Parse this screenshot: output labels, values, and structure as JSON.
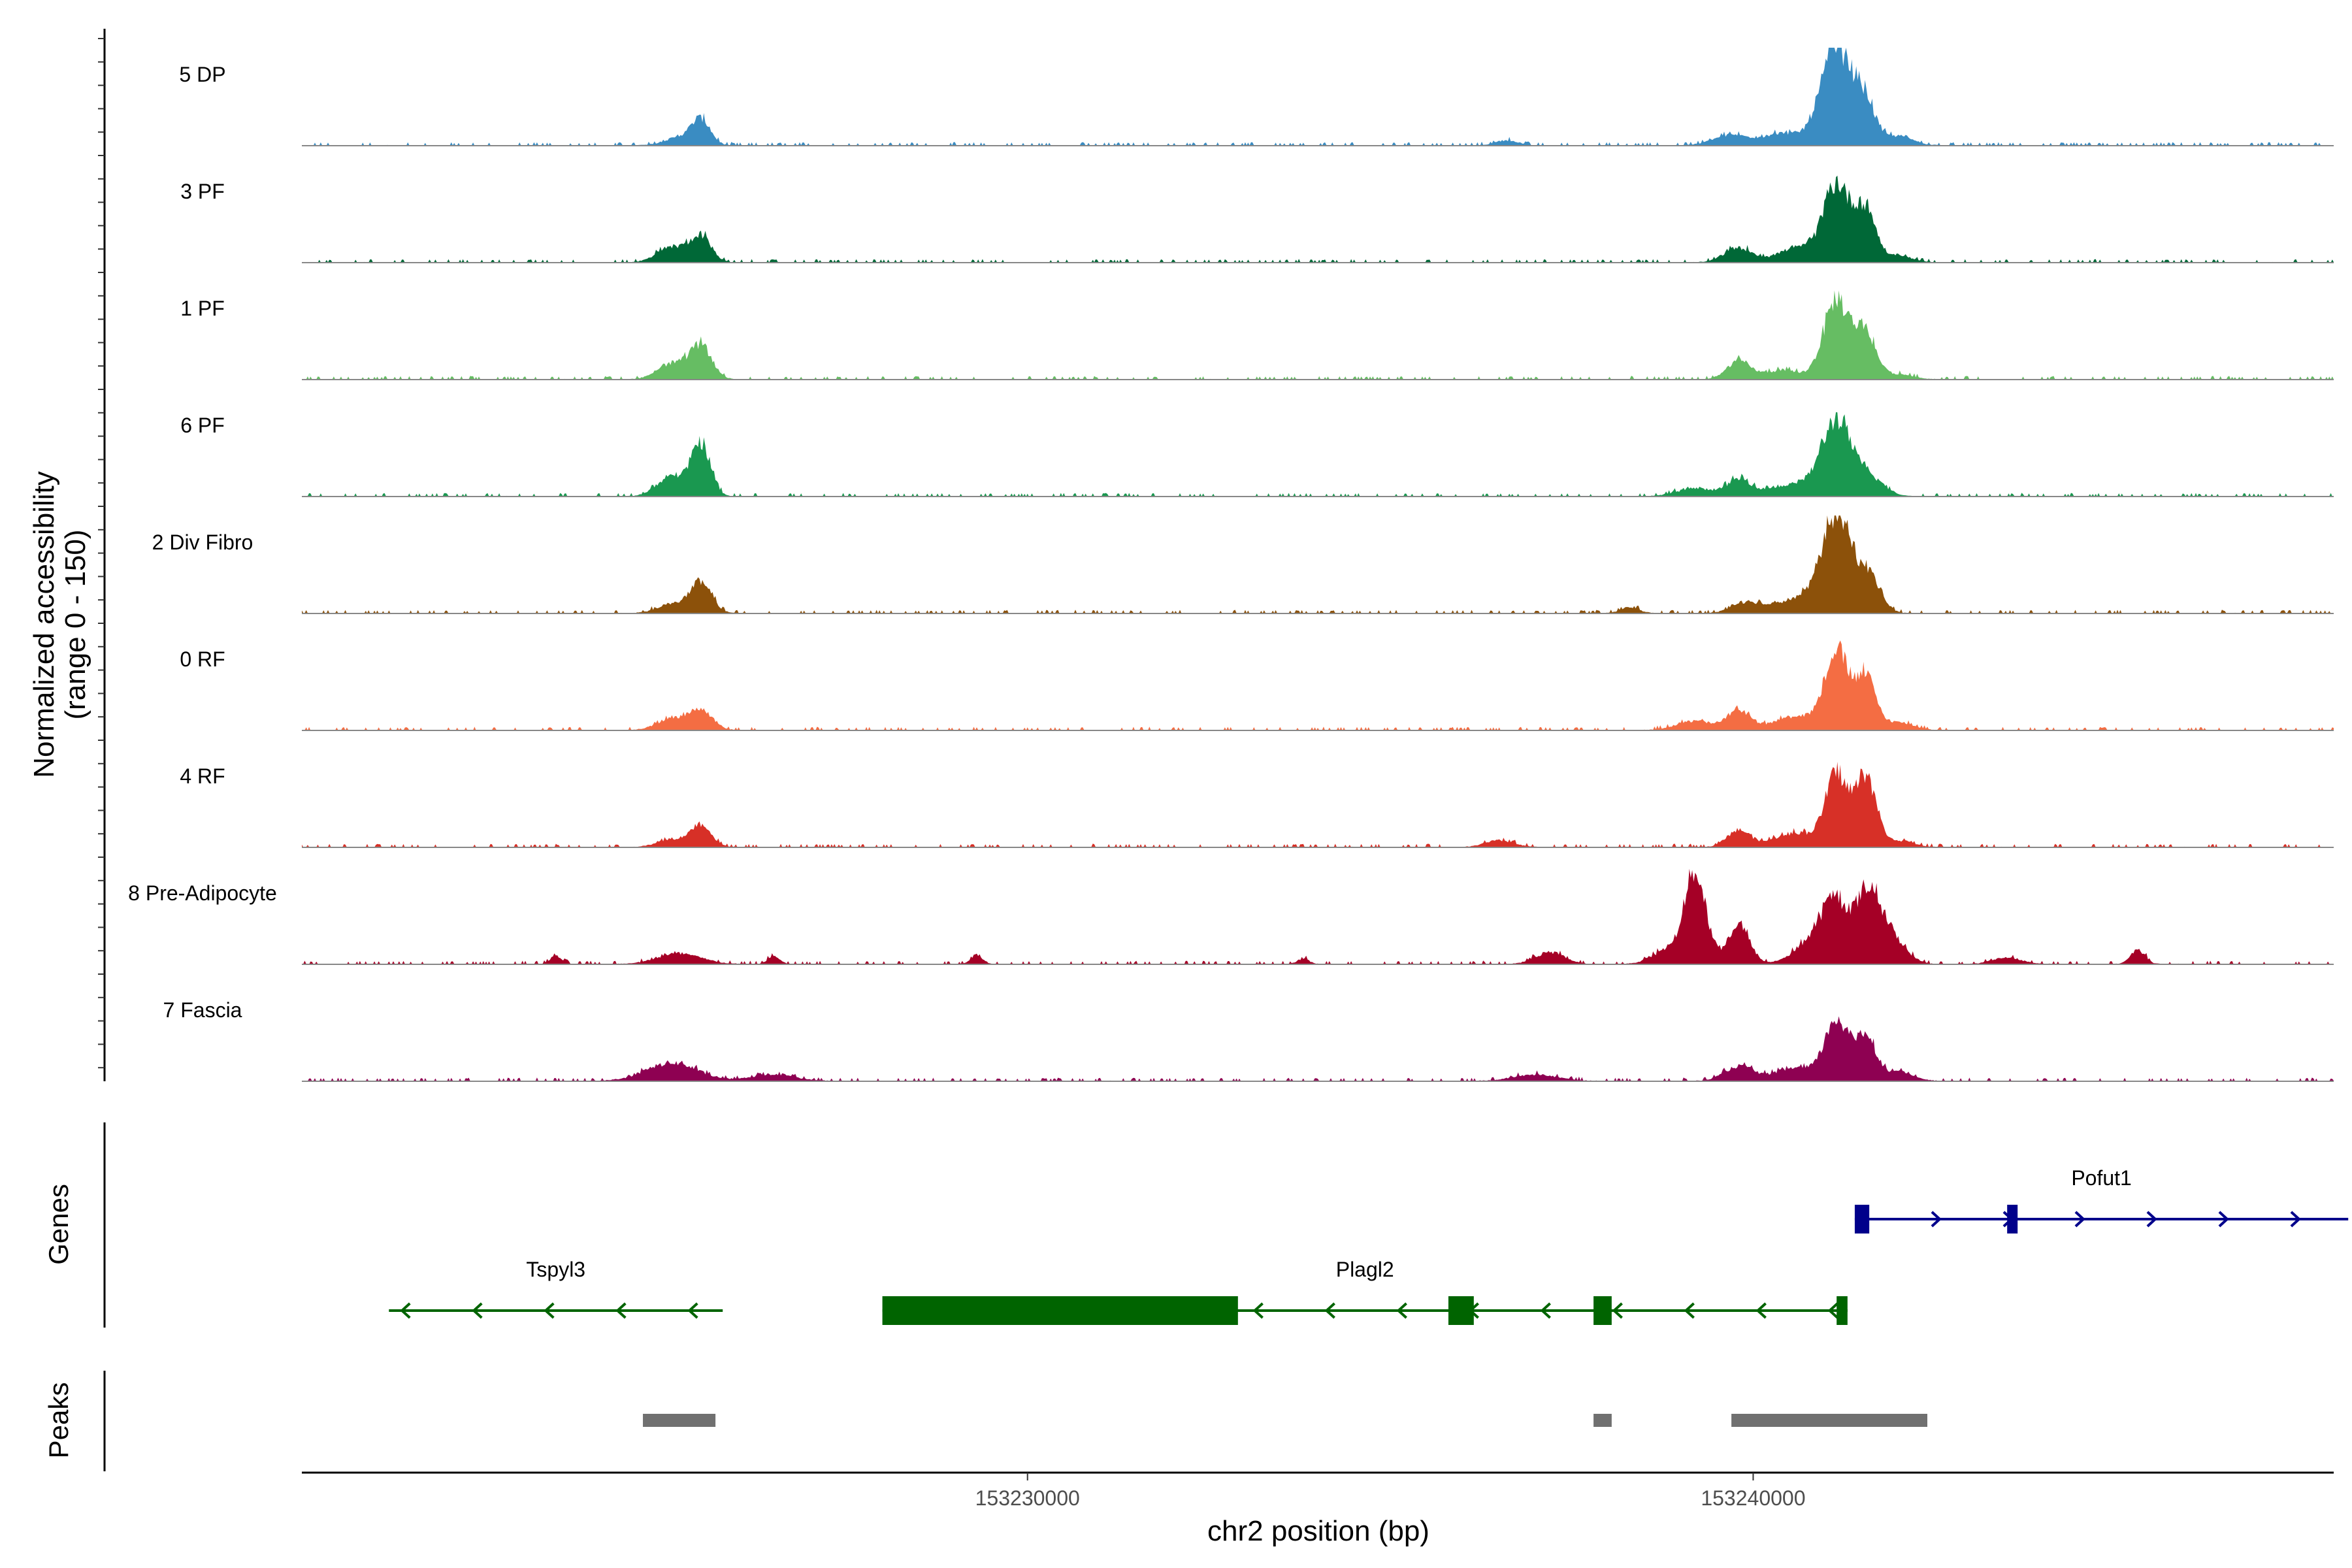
{
  "chart_data": {
    "type": "area",
    "title": "",
    "xlabel": "chr2 position (bp)",
    "ylabel_line1": "Normalized accessibility",
    "ylabel_line2": "(range 0 - 150)",
    "ylim": [
      0,
      150
    ],
    "xlim": [
      153220000,
      153248000
    ],
    "x_ticks": [
      153230000,
      153240000
    ],
    "x_tick_labels": [
      "153230000",
      "153240000"
    ],
    "genes_label": "Genes",
    "peaks_label": "Peaks",
    "series": [
      {
        "name": "5 DP",
        "color": "#3A8CC2",
        "peaks": [
          [
            153225500,
            38,
            130
          ],
          [
            153225200,
            12,
            200
          ],
          [
            153236600,
            8,
            150
          ],
          [
            153239700,
            16,
            250
          ],
          [
            153240400,
            18,
            250
          ],
          [
            153241150,
            150,
            220
          ],
          [
            153241550,
            55,
            140
          ],
          [
            153242000,
            14,
            200
          ]
        ]
      },
      {
        "name": "3 PF",
        "color": "#006837",
        "peaks": [
          [
            153225500,
            40,
            140
          ],
          [
            153225100,
            24,
            200
          ],
          [
            153239800,
            22,
            200
          ],
          [
            153240600,
            22,
            250
          ],
          [
            153241150,
            120,
            180
          ],
          [
            153241550,
            80,
            140
          ],
          [
            153242000,
            10,
            200
          ]
        ]
      },
      {
        "name": "1 PF",
        "color": "#66BD63",
        "peaks": [
          [
            153225500,
            50,
            150
          ],
          [
            153225100,
            24,
            200
          ],
          [
            153239800,
            28,
            160
          ],
          [
            153240400,
            14,
            250
          ],
          [
            153241150,
            120,
            180
          ],
          [
            153241550,
            70,
            140
          ],
          [
            153242000,
            8,
            200
          ]
        ]
      },
      {
        "name": "6 PF",
        "color": "#1A9850",
        "peaks": [
          [
            153225500,
            80,
            130
          ],
          [
            153225100,
            30,
            200
          ],
          [
            153239200,
            12,
            250
          ],
          [
            153239800,
            24,
            160
          ],
          [
            153240600,
            18,
            400
          ],
          [
            153241150,
            110,
            200
          ],
          [
            153241600,
            28,
            200
          ]
        ]
      },
      {
        "name": "2 Div Fibro",
        "color": "#8C510A",
        "peaks": [
          [
            153225500,
            45,
            150
          ],
          [
            153225100,
            14,
            200
          ],
          [
            153238300,
            10,
            120
          ],
          [
            153239900,
            16,
            200
          ],
          [
            153240600,
            22,
            300
          ],
          [
            153241150,
            150,
            200
          ],
          [
            153241600,
            55,
            160
          ]
        ]
      },
      {
        "name": "0 RF",
        "color": "#F46D43",
        "peaks": [
          [
            153225500,
            30,
            160
          ],
          [
            153225100,
            18,
            200
          ],
          [
            153239200,
            14,
            250
          ],
          [
            153239800,
            30,
            160
          ],
          [
            153240600,
            22,
            300
          ],
          [
            153241150,
            120,
            160
          ],
          [
            153241550,
            80,
            140
          ],
          [
            153242000,
            12,
            200
          ]
        ]
      },
      {
        "name": "4 RF",
        "color": "#D73027",
        "peaks": [
          [
            153225500,
            34,
            140
          ],
          [
            153225100,
            12,
            200
          ],
          [
            153236500,
            10,
            200
          ],
          [
            153239800,
            26,
            160
          ],
          [
            153240600,
            22,
            300
          ],
          [
            153241150,
            110,
            150
          ],
          [
            153241550,
            110,
            140
          ],
          [
            153242000,
            10,
            200
          ]
        ]
      },
      {
        "name": "8 Pre-Adipocyte",
        "color": "#A50026",
        "peaks": [
          [
            153223500,
            12,
            80
          ],
          [
            153225200,
            16,
            300
          ],
          [
            153226500,
            12,
            80
          ],
          [
            153229300,
            14,
            80
          ],
          [
            153233800,
            8,
            80
          ],
          [
            153237200,
            18,
            200
          ],
          [
            153238800,
            20,
            200
          ],
          [
            153239200,
            140,
            150
          ],
          [
            153239800,
            60,
            150
          ],
          [
            153240800,
            30,
            250
          ],
          [
            153241150,
            90,
            200
          ],
          [
            153241600,
            100,
            160
          ],
          [
            153241900,
            40,
            200
          ],
          [
            153243500,
            10,
            200
          ],
          [
            153245300,
            22,
            100
          ]
        ]
      },
      {
        "name": "7 Fascia",
        "color": "#8E0152",
        "peaks": [
          [
            153225100,
            28,
            350
          ],
          [
            153226500,
            10,
            300
          ],
          [
            153237000,
            10,
            300
          ],
          [
            153239800,
            22,
            200
          ],
          [
            153240600,
            20,
            300
          ],
          [
            153241150,
            90,
            160
          ],
          [
            153241550,
            70,
            140
          ],
          [
            153242000,
            14,
            200
          ]
        ]
      }
    ],
    "genes": [
      {
        "name": "Pofut1",
        "strand": "+",
        "start": 153241400,
        "end": 153248200,
        "color": "#00008B",
        "exons": [
          [
            153241400,
            153241600
          ],
          [
            153243500,
            153243620
          ]
        ]
      },
      {
        "name": "Tspyl3",
        "strand": "-",
        "start": 153221200,
        "end": 153225800,
        "color": "#006400",
        "exons": []
      },
      {
        "name": "Plagl2",
        "strand": "-",
        "start": 153228000,
        "end": 153241300,
        "color": "#006400",
        "exons": [
          [
            153228000,
            153232900
          ],
          [
            153235800,
            153236150
          ],
          [
            153237800,
            153238050
          ],
          [
            153241150,
            153241300
          ]
        ]
      }
    ],
    "peak_regions": [
      [
        153224700,
        153225700
      ],
      [
        153237800,
        153238050
      ],
      [
        153239700,
        153242400
      ]
    ]
  }
}
